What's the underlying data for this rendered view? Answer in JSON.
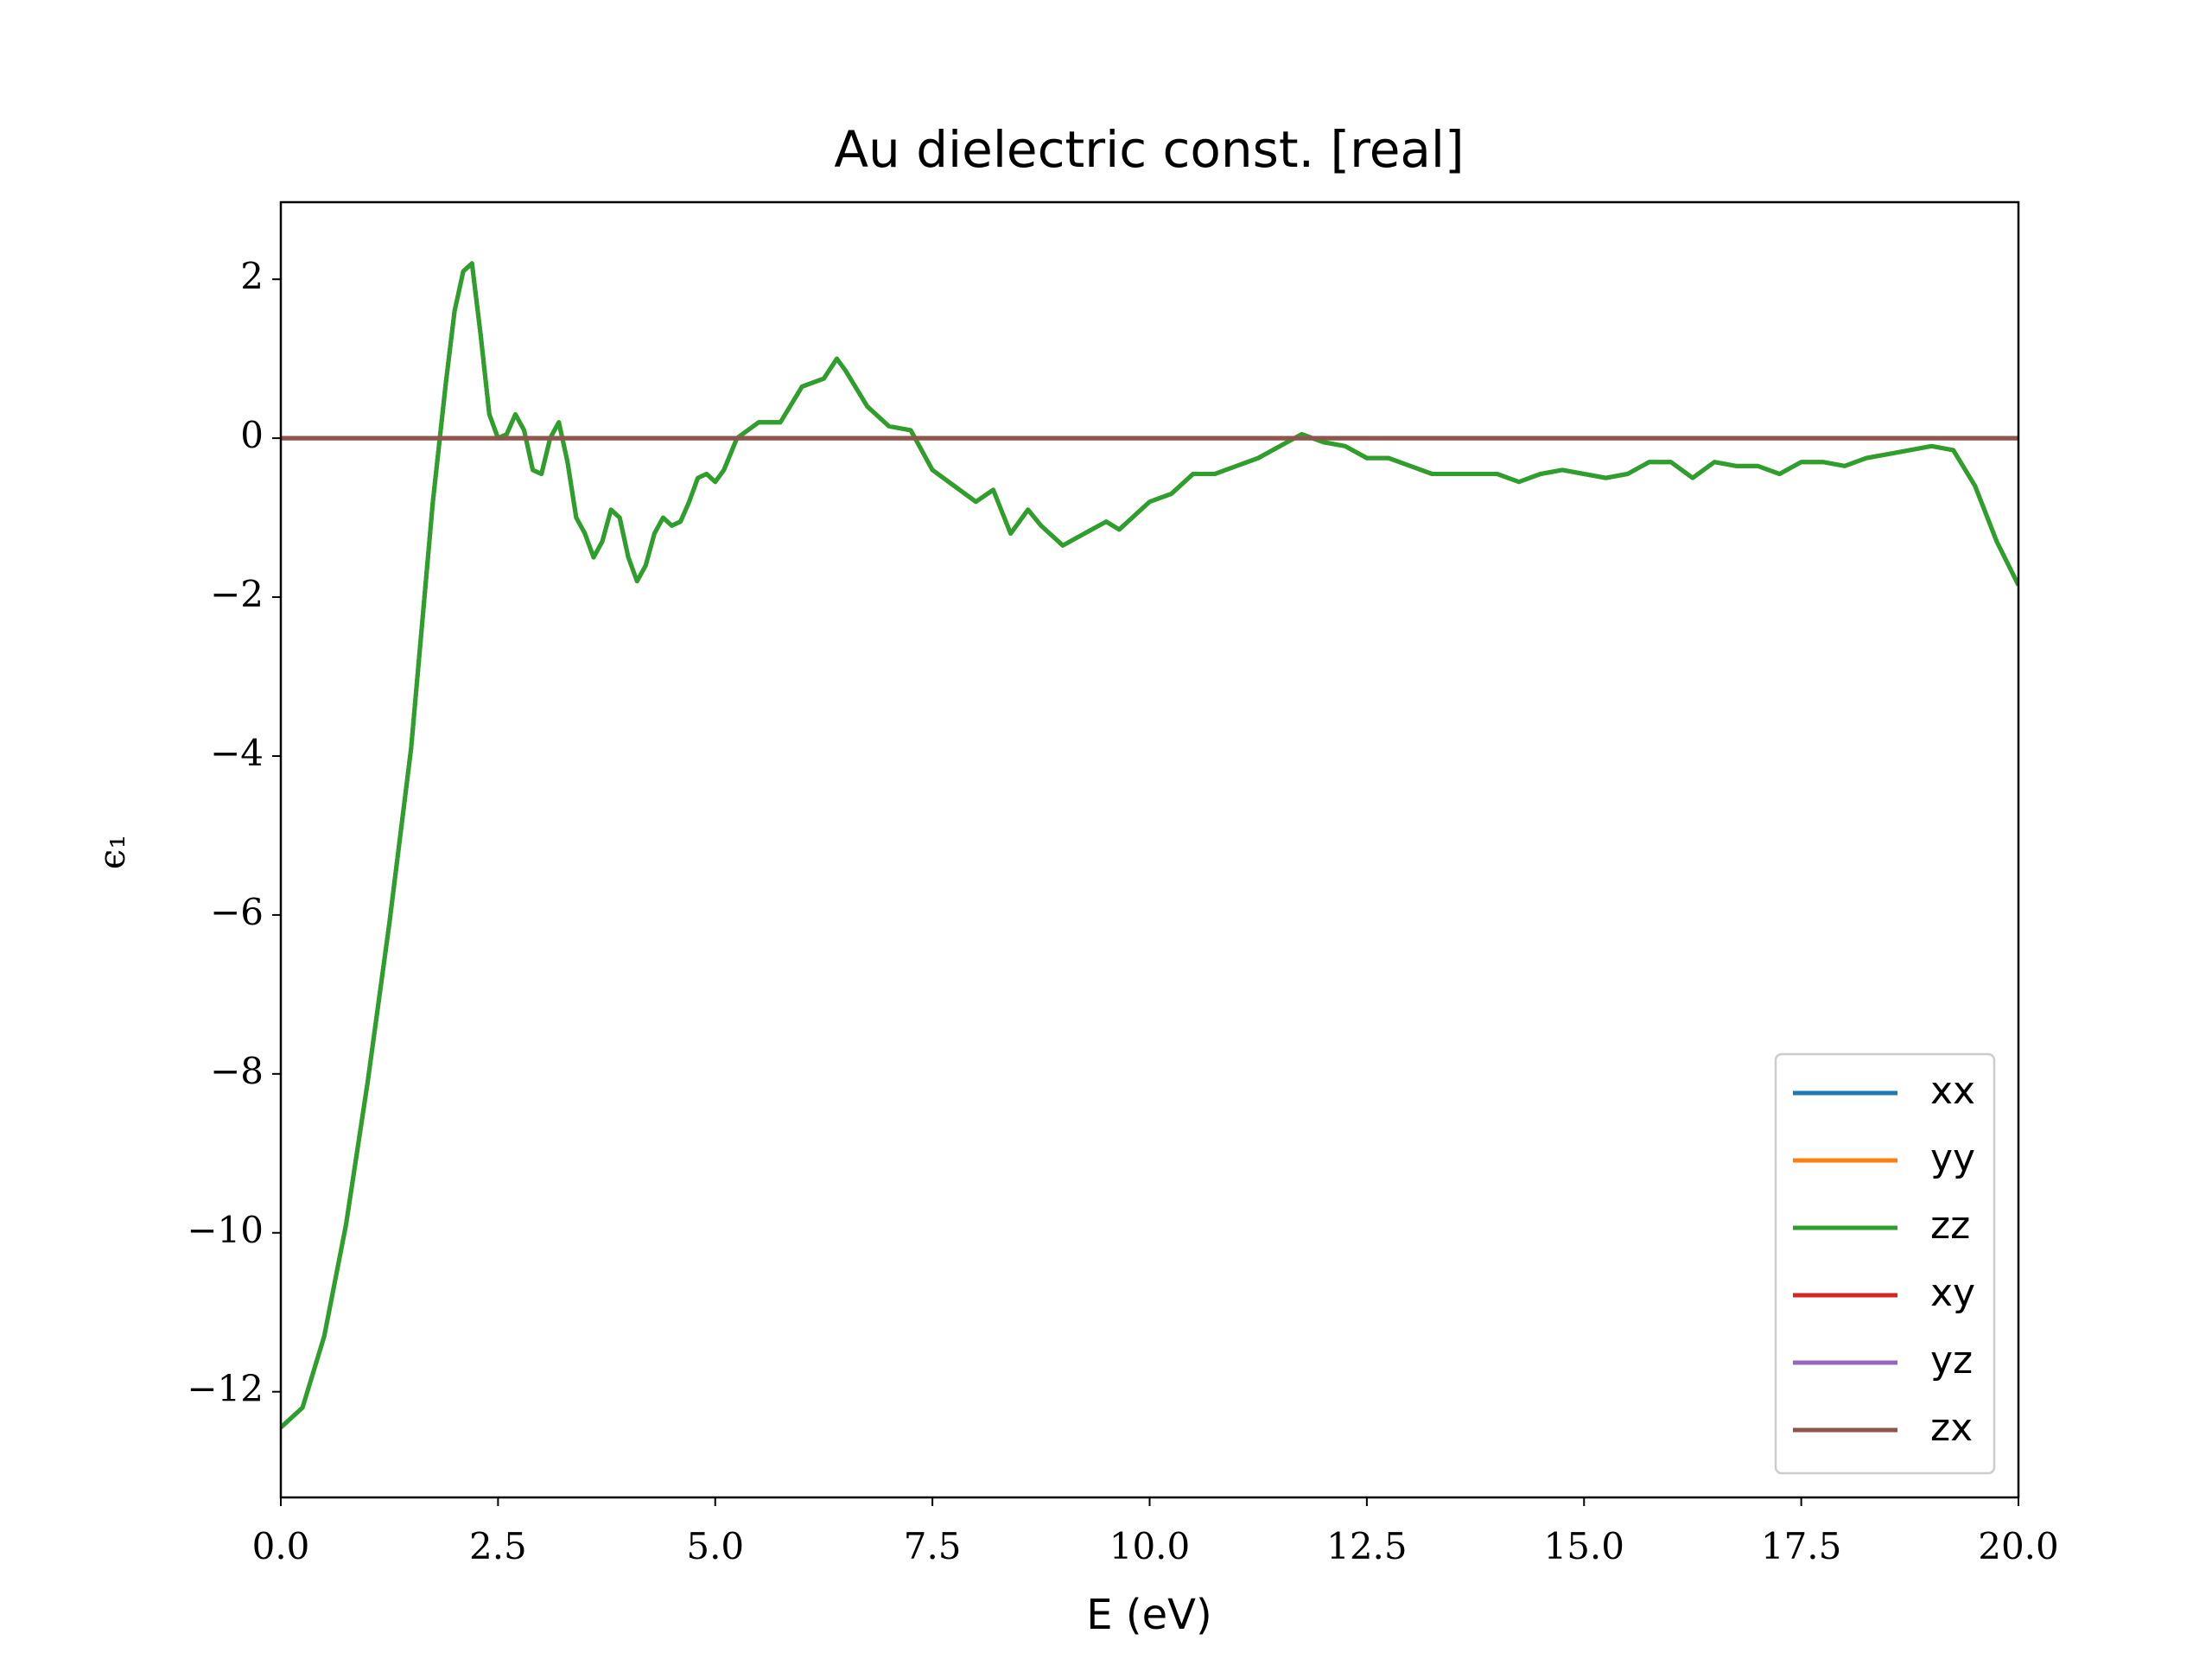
{
  "chart_data": {
    "type": "line",
    "title": "Au dielectric const. [real]",
    "xlabel": "E (eV)",
    "ylabel": "ϵ₁",
    "x": [
      0,
      0.25,
      0.5,
      0.75,
      1,
      1.25,
      1.5,
      1.75,
      1.9,
      2,
      2.1,
      2.2,
      2.3,
      2.4,
      2.5,
      2.6,
      2.7,
      2.8,
      2.9,
      3,
      3.1,
      3.2,
      3.3,
      3.4,
      3.5,
      3.6,
      3.7,
      3.8,
      3.9,
      4,
      4.1,
      4.2,
      4.3,
      4.4,
      4.5,
      4.6,
      4.7,
      4.8,
      4.9,
      5,
      5.1,
      5.25,
      5.5,
      5.75,
      6,
      6.25,
      6.4,
      6.5,
      6.75,
      7,
      7.25,
      7.5,
      7.75,
      8,
      8.2,
      8.4,
      8.6,
      8.75,
      9,
      9.25,
      9.5,
      9.65,
      10,
      10.25,
      10.5,
      10.75,
      11,
      11.25,
      11.5,
      11.75,
      12,
      12.25,
      12.5,
      12.75,
      13,
      13.25,
      13.5,
      13.75,
      14,
      14.25,
      14.5,
      14.75,
      15,
      15.25,
      15.5,
      15.75,
      16,
      16.25,
      16.5,
      16.75,
      17,
      17.25,
      17.5,
      17.75,
      18,
      18.25,
      18.5,
      18.75,
      19,
      19.25,
      19.5,
      19.75,
      20
    ],
    "series": [
      {
        "name": "xx",
        "color": "#1f77b4",
        "values": [
          -12.45,
          -12.2,
          -11.3,
          -9.9,
          -8.1,
          -6.1,
          -3.9,
          -0.8,
          0.7,
          1.6,
          2.1,
          2.2,
          1.3,
          0.3,
          0.0,
          0.05,
          0.3,
          0.1,
          -0.4,
          -0.45,
          0.0,
          0.2,
          -0.3,
          -1.0,
          -1.2,
          -1.5,
          -1.3,
          -0.9,
          -1.0,
          -1.5,
          -1.8,
          -1.6,
          -1.2,
          -1.0,
          -1.1,
          -1.05,
          -0.8,
          -0.5,
          -0.45,
          -0.55,
          -0.4,
          0.0,
          0.2,
          0.2,
          0.65,
          0.75,
          1.0,
          0.85,
          0.4,
          0.15,
          0.1,
          -0.4,
          -0.6,
          -0.8,
          -0.65,
          -1.2,
          -0.9,
          -1.1,
          -1.35,
          -1.2,
          -1.05,
          -1.15,
          -0.8,
          -0.7,
          -0.45,
          -0.45,
          -0.35,
          -0.25,
          -0.1,
          0.05,
          -0.05,
          -0.1,
          -0.25,
          -0.25,
          -0.35,
          -0.45,
          -0.45,
          -0.45,
          -0.45,
          -0.55,
          -0.45,
          -0.4,
          -0.45,
          -0.5,
          -0.45,
          -0.3,
          -0.3,
          -0.5,
          -0.3,
          -0.35,
          -0.35,
          -0.45,
          -0.3,
          -0.3,
          -0.35,
          -0.25,
          -0.2,
          -0.15,
          -0.1,
          -0.15,
          -0.6,
          -1.3,
          -1.85
        ]
      },
      {
        "name": "yy",
        "color": "#ff7f0e",
        "values": [
          -12.45,
          -12.2,
          -11.3,
          -9.9,
          -8.1,
          -6.1,
          -3.9,
          -0.8,
          0.7,
          1.6,
          2.1,
          2.2,
          1.3,
          0.3,
          0.0,
          0.05,
          0.3,
          0.1,
          -0.4,
          -0.45,
          0.0,
          0.2,
          -0.3,
          -1.0,
          -1.2,
          -1.5,
          -1.3,
          -0.9,
          -1.0,
          -1.5,
          -1.8,
          -1.6,
          -1.2,
          -1.0,
          -1.1,
          -1.05,
          -0.8,
          -0.5,
          -0.45,
          -0.55,
          -0.4,
          0.0,
          0.2,
          0.2,
          0.65,
          0.75,
          1.0,
          0.85,
          0.4,
          0.15,
          0.1,
          -0.4,
          -0.6,
          -0.8,
          -0.65,
          -1.2,
          -0.9,
          -1.1,
          -1.35,
          -1.2,
          -1.05,
          -1.15,
          -0.8,
          -0.7,
          -0.45,
          -0.45,
          -0.35,
          -0.25,
          -0.1,
          0.05,
          -0.05,
          -0.1,
          -0.25,
          -0.25,
          -0.35,
          -0.45,
          -0.45,
          -0.45,
          -0.45,
          -0.55,
          -0.45,
          -0.4,
          -0.45,
          -0.5,
          -0.45,
          -0.3,
          -0.3,
          -0.5,
          -0.3,
          -0.35,
          -0.35,
          -0.45,
          -0.3,
          -0.3,
          -0.35,
          -0.25,
          -0.2,
          -0.15,
          -0.1,
          -0.15,
          -0.6,
          -1.3,
          -1.85
        ]
      },
      {
        "name": "zz",
        "color": "#2ca02c",
        "values": [
          -12.45,
          -12.2,
          -11.3,
          -9.9,
          -8.1,
          -6.1,
          -3.9,
          -0.8,
          0.7,
          1.6,
          2.1,
          2.2,
          1.3,
          0.3,
          0.0,
          0.05,
          0.3,
          0.1,
          -0.4,
          -0.45,
          0.0,
          0.2,
          -0.3,
          -1.0,
          -1.2,
          -1.5,
          -1.3,
          -0.9,
          -1.0,
          -1.5,
          -1.8,
          -1.6,
          -1.2,
          -1.0,
          -1.1,
          -1.05,
          -0.8,
          -0.5,
          -0.45,
          -0.55,
          -0.4,
          0.0,
          0.2,
          0.2,
          0.65,
          0.75,
          1.0,
          0.85,
          0.4,
          0.15,
          0.1,
          -0.4,
          -0.6,
          -0.8,
          -0.65,
          -1.2,
          -0.9,
          -1.1,
          -1.35,
          -1.2,
          -1.05,
          -1.15,
          -0.8,
          -0.7,
          -0.45,
          -0.45,
          -0.35,
          -0.25,
          -0.1,
          0.05,
          -0.05,
          -0.1,
          -0.25,
          -0.25,
          -0.35,
          -0.45,
          -0.45,
          -0.45,
          -0.45,
          -0.55,
          -0.45,
          -0.4,
          -0.45,
          -0.5,
          -0.45,
          -0.3,
          -0.3,
          -0.5,
          -0.3,
          -0.35,
          -0.35,
          -0.45,
          -0.3,
          -0.3,
          -0.35,
          -0.25,
          -0.2,
          -0.15,
          -0.1,
          -0.15,
          -0.6,
          -1.3,
          -1.85
        ]
      },
      {
        "name": "xy",
        "color": "#d62728",
        "x": [
          0,
          20
        ],
        "values": [
          0,
          0
        ]
      },
      {
        "name": "yz",
        "color": "#9467bd",
        "x": [
          0,
          20
        ],
        "values": [
          0,
          0
        ]
      },
      {
        "name": "zx",
        "color": "#8c564b",
        "x": [
          0,
          20
        ],
        "values": [
          0,
          0
        ]
      }
    ],
    "xlim": [
      0,
      20
    ],
    "ylim": [
      -13.33,
      2.97
    ],
    "xticks": [
      {
        "value": 0,
        "label": "0.0"
      },
      2.5,
      {
        "value": 5,
        "label": "5.0"
      },
      7.5,
      {
        "value": 10,
        "label": "10.0"
      },
      12.5,
      {
        "value": 15,
        "label": "15.0"
      },
      17.5,
      {
        "value": 20,
        "label": "20.0"
      }
    ],
    "yticks": [
      {
        "value": -12,
        "label": "−12"
      },
      {
        "value": -10,
        "label": "−10"
      },
      {
        "value": -8,
        "label": "−8"
      },
      {
        "value": -6,
        "label": "−6"
      },
      {
        "value": -4,
        "label": "−4"
      },
      {
        "value": -2,
        "label": "−2"
      },
      0,
      2
    ],
    "grid": false,
    "legend": "lower right"
  }
}
